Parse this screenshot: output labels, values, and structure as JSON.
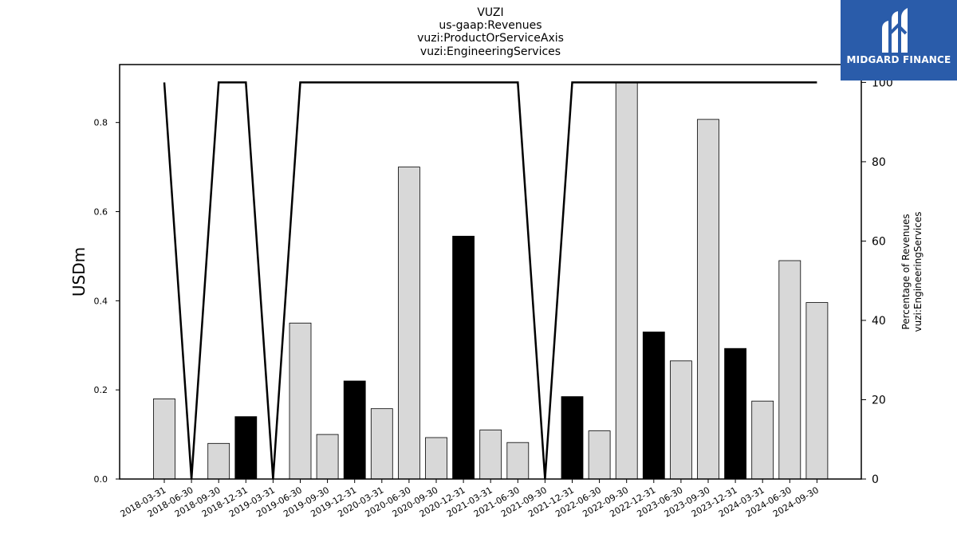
{
  "chart_data": {
    "type": "bar",
    "title_lines": [
      "VUZI",
      "us-gaap:Revenues",
      "vuzi:ProductOrServiceAxis",
      "vuzi:EngineeringServices"
    ],
    "ylabel": "USDm",
    "ylabel_right": [
      "Percentage of Revenues",
      "vuzi:EngineeringServices"
    ],
    "categories": [
      "2018-03-31",
      "2018-06-30",
      "2018-09-30",
      "2018-12-31",
      "2019-03-31",
      "2019-06-30",
      "2019-09-30",
      "2019-12-31",
      "2020-03-31",
      "2020-06-30",
      "2020-09-30",
      "2020-12-31",
      "2021-03-31",
      "2021-06-30",
      "2021-09-30",
      "2021-12-31",
      "2022-06-30",
      "2022-09-30",
      "2022-12-31",
      "2023-06-30",
      "2023-09-30",
      "2023-12-31",
      "2024-03-31",
      "2024-06-30",
      "2024-09-30"
    ],
    "values": [
      0.18,
      0.0,
      0.08,
      0.14,
      0.0,
      0.35,
      0.1,
      0.22,
      0.158,
      0.7,
      0.093,
      0.545,
      0.11,
      0.082,
      0.0,
      0.185,
      0.108,
      0.89,
      0.33,
      0.265,
      0.807,
      0.293,
      0.175,
      0.49,
      0.396
    ],
    "highlight": [
      false,
      false,
      false,
      true,
      false,
      false,
      false,
      true,
      false,
      false,
      false,
      true,
      false,
      false,
      false,
      true,
      false,
      false,
      true,
      false,
      false,
      true,
      false,
      false,
      false
    ],
    "percentage": [
      100,
      0,
      100,
      100,
      0,
      100,
      100,
      100,
      100,
      100,
      100,
      100,
      100,
      100,
      0,
      100,
      100,
      100,
      100,
      100,
      100,
      100,
      100,
      100,
      100
    ],
    "ylim": [
      0,
      0.93
    ],
    "yticks": [
      0.0,
      0.2,
      0.4,
      0.6,
      0.8
    ],
    "ylim_right": [
      0,
      104.5
    ],
    "yticks_right": [
      0,
      20,
      40,
      60,
      80,
      100
    ],
    "colors": {
      "bar": "#d8d8d8",
      "bar_highlight": "#000000",
      "line": "#000000",
      "logo_bg": "#2a5caa"
    },
    "grid": false
  },
  "logo": {
    "text": "MIDGARD FINANCE",
    "icon": "midgard-logo-icon"
  }
}
